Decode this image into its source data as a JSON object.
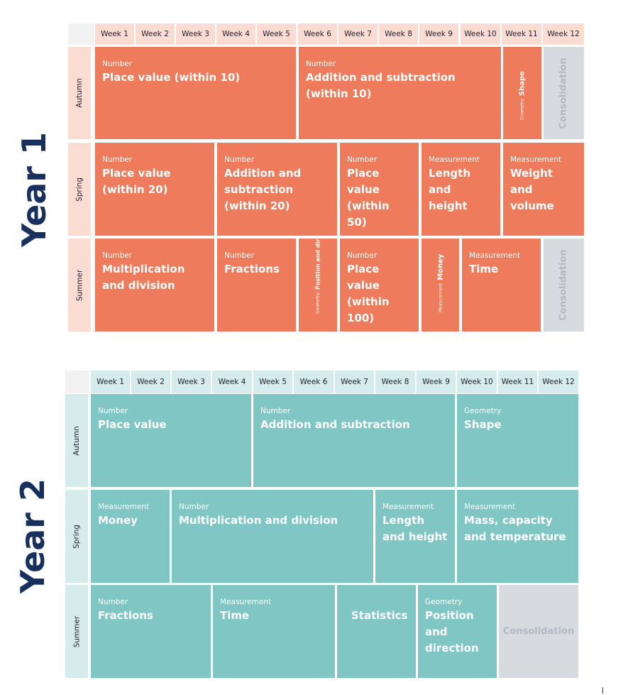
{
  "year1": {
    "label": "Year 1",
    "weeks": [
      "Week 1",
      "Week 2",
      "Week 3",
      "Week 4",
      "Week 5",
      "Week 6",
      "Week 7",
      "Week 8",
      "Week 9",
      "Week 10",
      "Week 11",
      "Week 12"
    ],
    "terms": [
      "Autumn",
      "Spring",
      "Summer"
    ],
    "autumn": [
      {
        "category": "Number",
        "topic": "Place value (within 10)"
      },
      {
        "category": "Number",
        "topic": "Addition and subtraction (within 10)"
      },
      {
        "category": "Geometry",
        "topic": "Shape"
      },
      {
        "label": "Consolidation"
      }
    ],
    "spring": [
      {
        "category": "Number",
        "topic": "Place value (within 20)"
      },
      {
        "category": "Number",
        "topic": "Addition and subtraction (within 20)"
      },
      {
        "category": "Number",
        "topic": "Place value (within 50)"
      },
      {
        "category": "Measurement",
        "topic": "Length and height"
      },
      {
        "category": "Measurement",
        "topic": "Weight and volume"
      }
    ],
    "summer": [
      {
        "category": "Number",
        "topic": "Multiplication and division"
      },
      {
        "category": "Number",
        "topic": "Fractions"
      },
      {
        "category": "Geometry",
        "topic": "Position and direction"
      },
      {
        "category": "Number",
        "topic": "Place value (within 100)"
      },
      {
        "category": "Measurement",
        "topic": "Money"
      },
      {
        "category": "Measurement",
        "topic": "Time"
      },
      {
        "label": "Consolidation"
      }
    ]
  },
  "year2": {
    "label": "Year 2",
    "weeks": [
      "Week 1",
      "Week 2",
      "Week 3",
      "Week 4",
      "Week 5",
      "Week 6",
      "Week 7",
      "Week 8",
      "Week 9",
      "Week 10",
      "Week 11",
      "Week 12"
    ],
    "terms": [
      "Autumn",
      "Spring",
      "Summer"
    ],
    "autumn": [
      {
        "category": "Number",
        "topic": "Place value"
      },
      {
        "category": "Number",
        "topic": "Addition and subtraction"
      },
      {
        "category": "Geometry",
        "topic": "Shape"
      }
    ],
    "spring": [
      {
        "category": "Measurement",
        "topic": "Money"
      },
      {
        "category": "Number",
        "topic": "Multiplication and division"
      },
      {
        "category": "Measurement",
        "topic": "Length and height"
      },
      {
        "category": "Measurement",
        "topic": "Mass, capacity and temperature"
      }
    ],
    "summer": [
      {
        "category": "Number",
        "topic": "Fractions"
      },
      {
        "category": "Measurement",
        "topic": "Time"
      },
      {
        "topic": "Statistics"
      },
      {
        "category": "Geometry",
        "topic": "Position and direction"
      },
      {
        "label": "Consolidation"
      }
    ]
  },
  "colors": {
    "year1_block": "#ee7b5b",
    "year1_header": "#fbdcd2",
    "year2_block": "#7fc6c4",
    "year2_header": "#d6ecec",
    "consolidation": "#d7dbe0",
    "year_label": "#17305e"
  }
}
